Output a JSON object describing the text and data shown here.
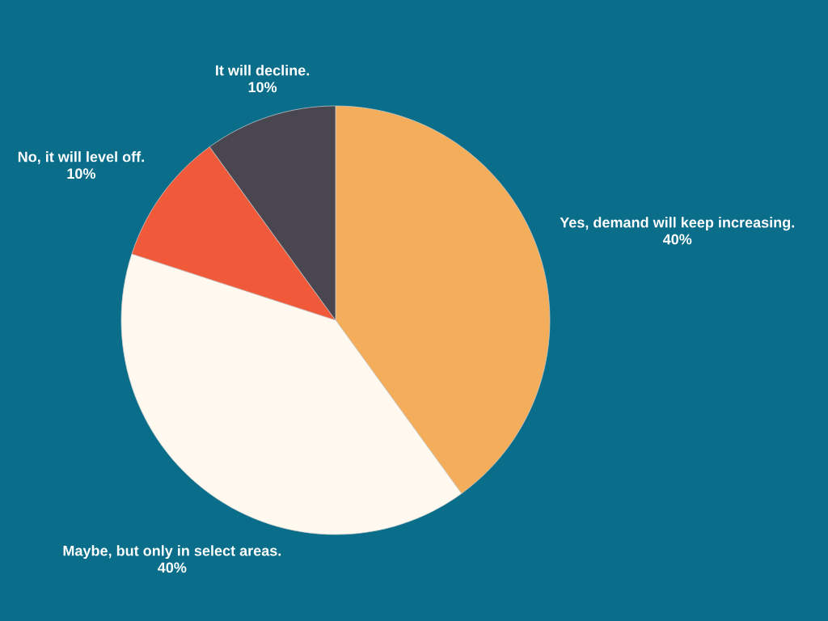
{
  "chart_data": {
    "type": "pie",
    "categories": [
      "Yes, demand will keep increasing.",
      "Maybe, but only in select areas.",
      "No, it will level off.",
      "It will decline."
    ],
    "values": [
      40,
      40,
      10,
      10
    ],
    "colors": [
      "#f4ad5b",
      "#fff9ef",
      "#f05a3a",
      "#4a464f"
    ],
    "value_labels": [
      "40%",
      "40%",
      "10%",
      "10%"
    ]
  }
}
